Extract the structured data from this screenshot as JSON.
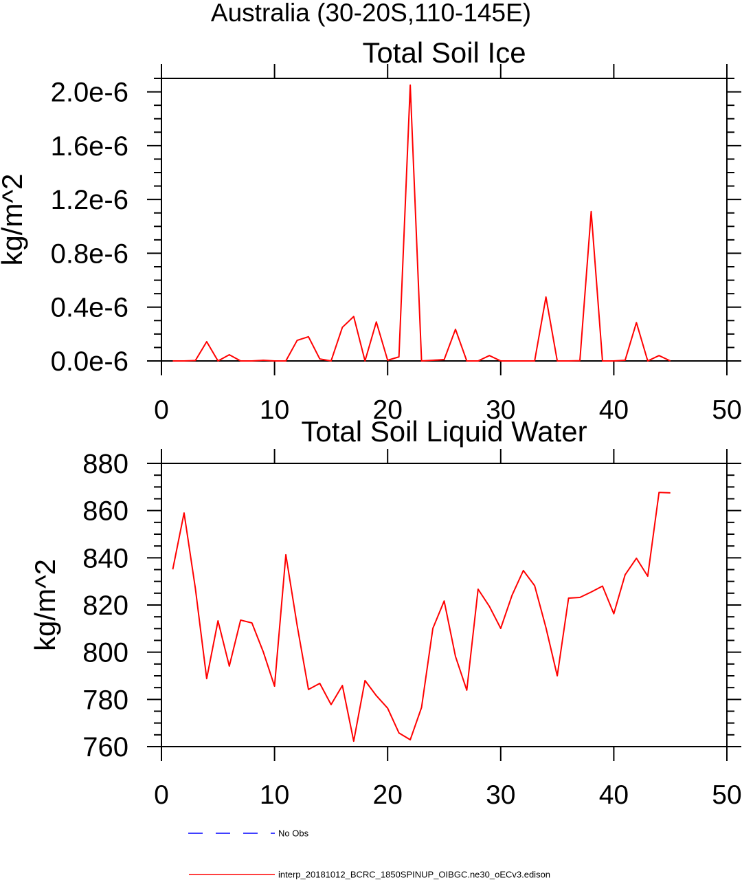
{
  "figure": {
    "title": "Australia (30-20S,110-145E)"
  },
  "chart_data": [
    {
      "type": "line",
      "title": "Total Soil Ice",
      "ylabel": "kg/m^2",
      "xlim": [
        0,
        50
      ],
      "ylim": [
        0,
        2.1e-06
      ],
      "xticks": [
        0,
        10,
        20,
        30,
        40,
        50
      ],
      "xtick_labels": [
        "0",
        "10",
        "20",
        "30",
        "40",
        "50"
      ],
      "yticks": [
        0,
        4e-07,
        8e-07,
        1.2e-06,
        1.6e-06,
        2e-06
      ],
      "ytick_labels": [
        "0.0e-6",
        "0.4e-6",
        "0.8e-6",
        "1.2e-6",
        "1.6e-6",
        "2.0e-6"
      ],
      "y_minor_step": 1e-07,
      "grid": false,
      "x": [
        1,
        2,
        3,
        4,
        5,
        6,
        7,
        8,
        9,
        10,
        11,
        12,
        13,
        14,
        15,
        16,
        17,
        18,
        19,
        20,
        21,
        22,
        23,
        24,
        25,
        26,
        27,
        28,
        29,
        30,
        31,
        32,
        33,
        34,
        35,
        36,
        37,
        38,
        39,
        40,
        41,
        42,
        43,
        44,
        45
      ],
      "series": [
        {
          "color": "#ff0000",
          "values": [
            0,
            0,
            3e-09,
            1.43e-07,
            0,
            4.6e-08,
            0,
            0,
            5e-09,
            0,
            0,
            1.53e-07,
            1.8e-07,
            1.5e-08,
            0,
            2.5e-07,
            3.3e-07,
            0,
            2.9e-07,
            5e-09,
            3e-08,
            2.05e-06,
            0,
            5e-09,
            1e-08,
            2.35e-07,
            0,
            0,
            4e-08,
            0,
            0,
            0,
            0,
            4.75e-07,
            0,
            0,
            2e-09,
            1.11e-06,
            0,
            0,
            5e-09,
            2.85e-07,
            0,
            4e-08,
            0
          ]
        }
      ]
    },
    {
      "type": "line",
      "title": "Total Soil Liquid Water",
      "ylabel": "kg/m^2",
      "xlim": [
        0,
        50
      ],
      "ylim": [
        760,
        880
      ],
      "xticks": [
        0,
        10,
        20,
        30,
        40,
        50
      ],
      "xtick_labels": [
        "0",
        "10",
        "20",
        "30",
        "40",
        "50"
      ],
      "yticks": [
        760,
        780,
        800,
        820,
        840,
        860,
        880
      ],
      "ytick_labels": [
        "760",
        "780",
        "800",
        "820",
        "840",
        "860",
        "880"
      ],
      "y_minor_step": 5,
      "grid": false,
      "x": [
        1,
        2,
        3,
        4,
        5,
        6,
        7,
        8,
        9,
        10,
        11,
        12,
        13,
        14,
        15,
        16,
        17,
        18,
        19,
        20,
        21,
        22,
        23,
        24,
        25,
        26,
        27,
        28,
        29,
        30,
        31,
        32,
        33,
        34,
        35,
        36,
        37,
        38,
        39,
        40,
        41,
        42,
        43,
        44,
        45
      ],
      "series": [
        {
          "color": "#ff0000",
          "values": [
            835.1,
            859.0,
            827.0,
            788.8,
            813.3,
            794.1,
            813.6,
            812.4,
            800.2,
            785.6,
            841.3,
            811.3,
            784.2,
            786.8,
            777.8,
            785.9,
            762.3,
            788.0,
            781.6,
            776.3,
            765.8,
            762.9,
            776.6,
            810.1,
            821.7,
            798.2,
            783.9,
            826.7,
            819.4,
            810.1,
            824.1,
            834.6,
            828.2,
            810.4,
            790.0,
            822.9,
            823.2,
            825.5,
            828.0,
            816.3,
            832.8,
            839.8,
            832.2,
            867.7,
            867.5
          ]
        }
      ]
    }
  ],
  "legend": {
    "placement": "bottom-left",
    "items": [
      {
        "label": "No Obs",
        "color": "#0000ff",
        "line_style": "dashed"
      },
      {
        "label": "interp_20181012_BCRC_1850SPINUP_OIBGC.ne30_oECv3.edison",
        "color": "#ff0000",
        "line_style": "solid"
      }
    ]
  }
}
